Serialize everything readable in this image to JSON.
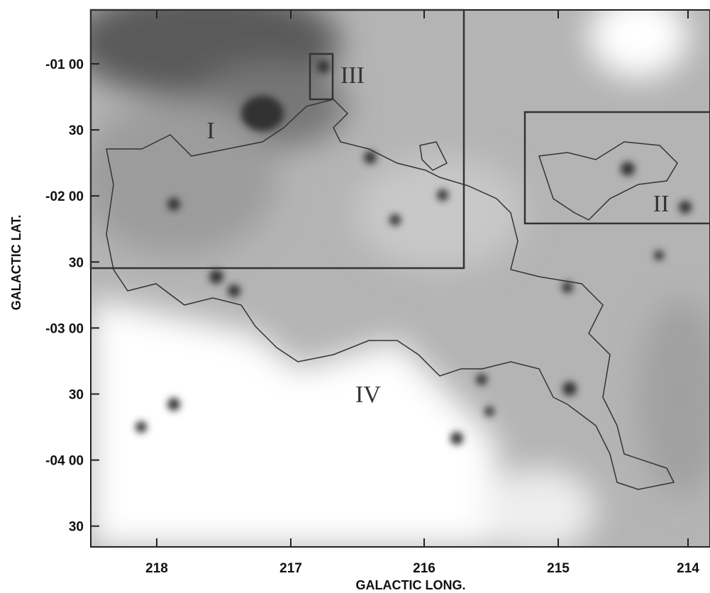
{
  "axes": {
    "x_label": "GALACTIC LONG.",
    "y_label": "GALACTIC LAT.",
    "x_ticks": [
      "218",
      "217",
      "216",
      "215",
      "214"
    ],
    "y_ticks": [
      "-01 00",
      "30",
      "-02 00",
      "30",
      "-03 00",
      "30",
      "-04 00",
      "30"
    ]
  },
  "regions": [
    "I",
    "II",
    "III",
    "IV"
  ]
}
